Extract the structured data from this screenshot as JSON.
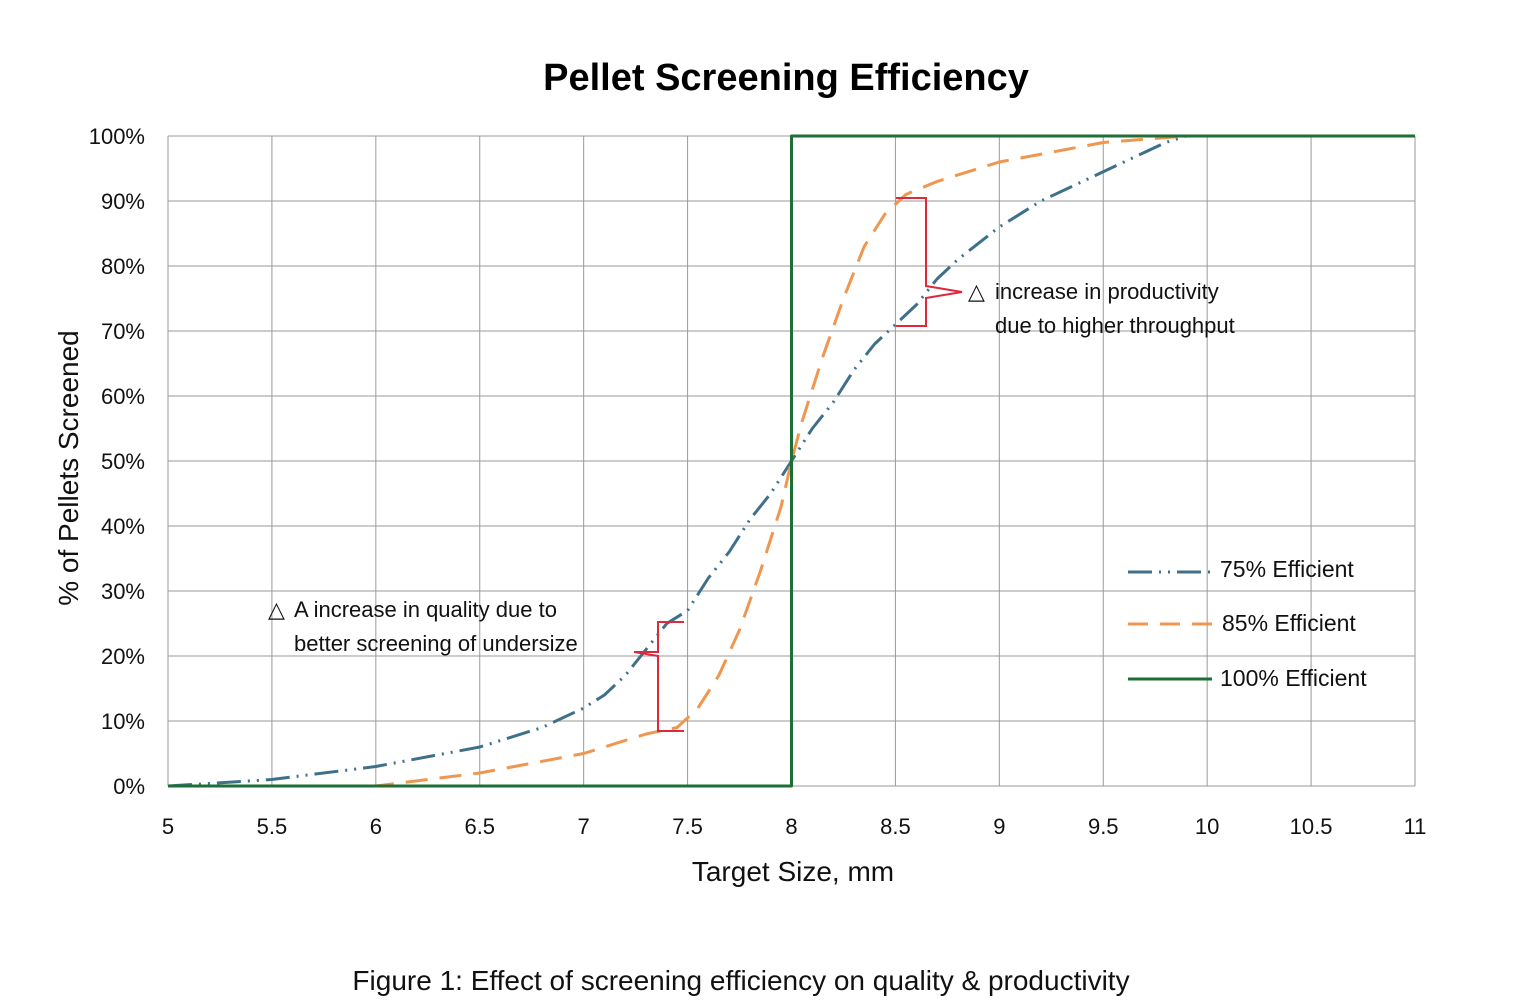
{
  "chart_data": {
    "type": "line",
    "title": "Pellet Screening Efficiency",
    "xlabel": "Target Size, mm",
    "ylabel": "% of Pellets Screened",
    "xlim": [
      5,
      11
    ],
    "ylim": [
      0,
      100
    ],
    "x_ticks": [
      "5",
      "5.5",
      "6",
      "6.5",
      "7",
      "7.5",
      "8",
      "8.5",
      "9",
      "9.5",
      "10",
      "10.5",
      "11"
    ],
    "y_ticks": [
      "0%",
      "10%",
      "20%",
      "30%",
      "40%",
      "50%",
      "60%",
      "70%",
      "80%",
      "90%",
      "100%"
    ],
    "grid": true,
    "legend_position": "right",
    "series": [
      {
        "name": "75% Efficient",
        "color": "#3f7089",
        "dash": "dash-dot-dot",
        "x": [
          5.0,
          5.5,
          6.0,
          6.5,
          6.8,
          7.0,
          7.1,
          7.2,
          7.3,
          7.4,
          7.5,
          7.6,
          7.7,
          7.8,
          7.9,
          8.0,
          8.1,
          8.2,
          8.3,
          8.4,
          8.5,
          8.6,
          8.7,
          8.8,
          9.0,
          9.2,
          9.4,
          9.6,
          9.8,
          9.9
        ],
        "y": [
          0,
          1,
          3,
          6,
          9,
          12,
          14,
          17,
          21,
          25,
          27,
          32,
          36,
          41,
          45,
          50,
          55,
          59,
          64,
          68,
          71,
          74,
          78,
          81,
          86,
          90,
          93,
          96,
          99,
          100
        ]
      },
      {
        "name": "85% Efficient",
        "color": "#f0964f",
        "dash": "dashed",
        "x": [
          5.0,
          5.5,
          6.0,
          6.5,
          7.0,
          7.3,
          7.45,
          7.55,
          7.65,
          7.75,
          7.85,
          7.95,
          8.0,
          8.05,
          8.15,
          8.25,
          8.35,
          8.45,
          8.55,
          8.7,
          9.0,
          9.5,
          9.9
        ],
        "y": [
          0,
          0,
          0,
          2,
          5,
          8,
          9,
          12,
          17,
          24,
          33,
          43,
          50,
          56,
          66,
          75,
          83,
          88,
          91,
          93,
          96,
          99,
          100
        ]
      },
      {
        "name": "100% Efficient",
        "color": "#1e6f36",
        "dash": "solid",
        "x": [
          5,
          8,
          8,
          11
        ],
        "y": [
          0,
          0,
          100,
          100
        ]
      }
    ],
    "annotations": [
      {
        "symbol": "△",
        "lines": [
          "A increase in quality due to",
          "better screening of undersize"
        ]
      },
      {
        "symbol": "△",
        "lines": [
          "increase in productivity",
          "due to higher throughput"
        ]
      }
    ],
    "caption": "Figure 1: Effect of screening efficiency on quality & productivity"
  }
}
